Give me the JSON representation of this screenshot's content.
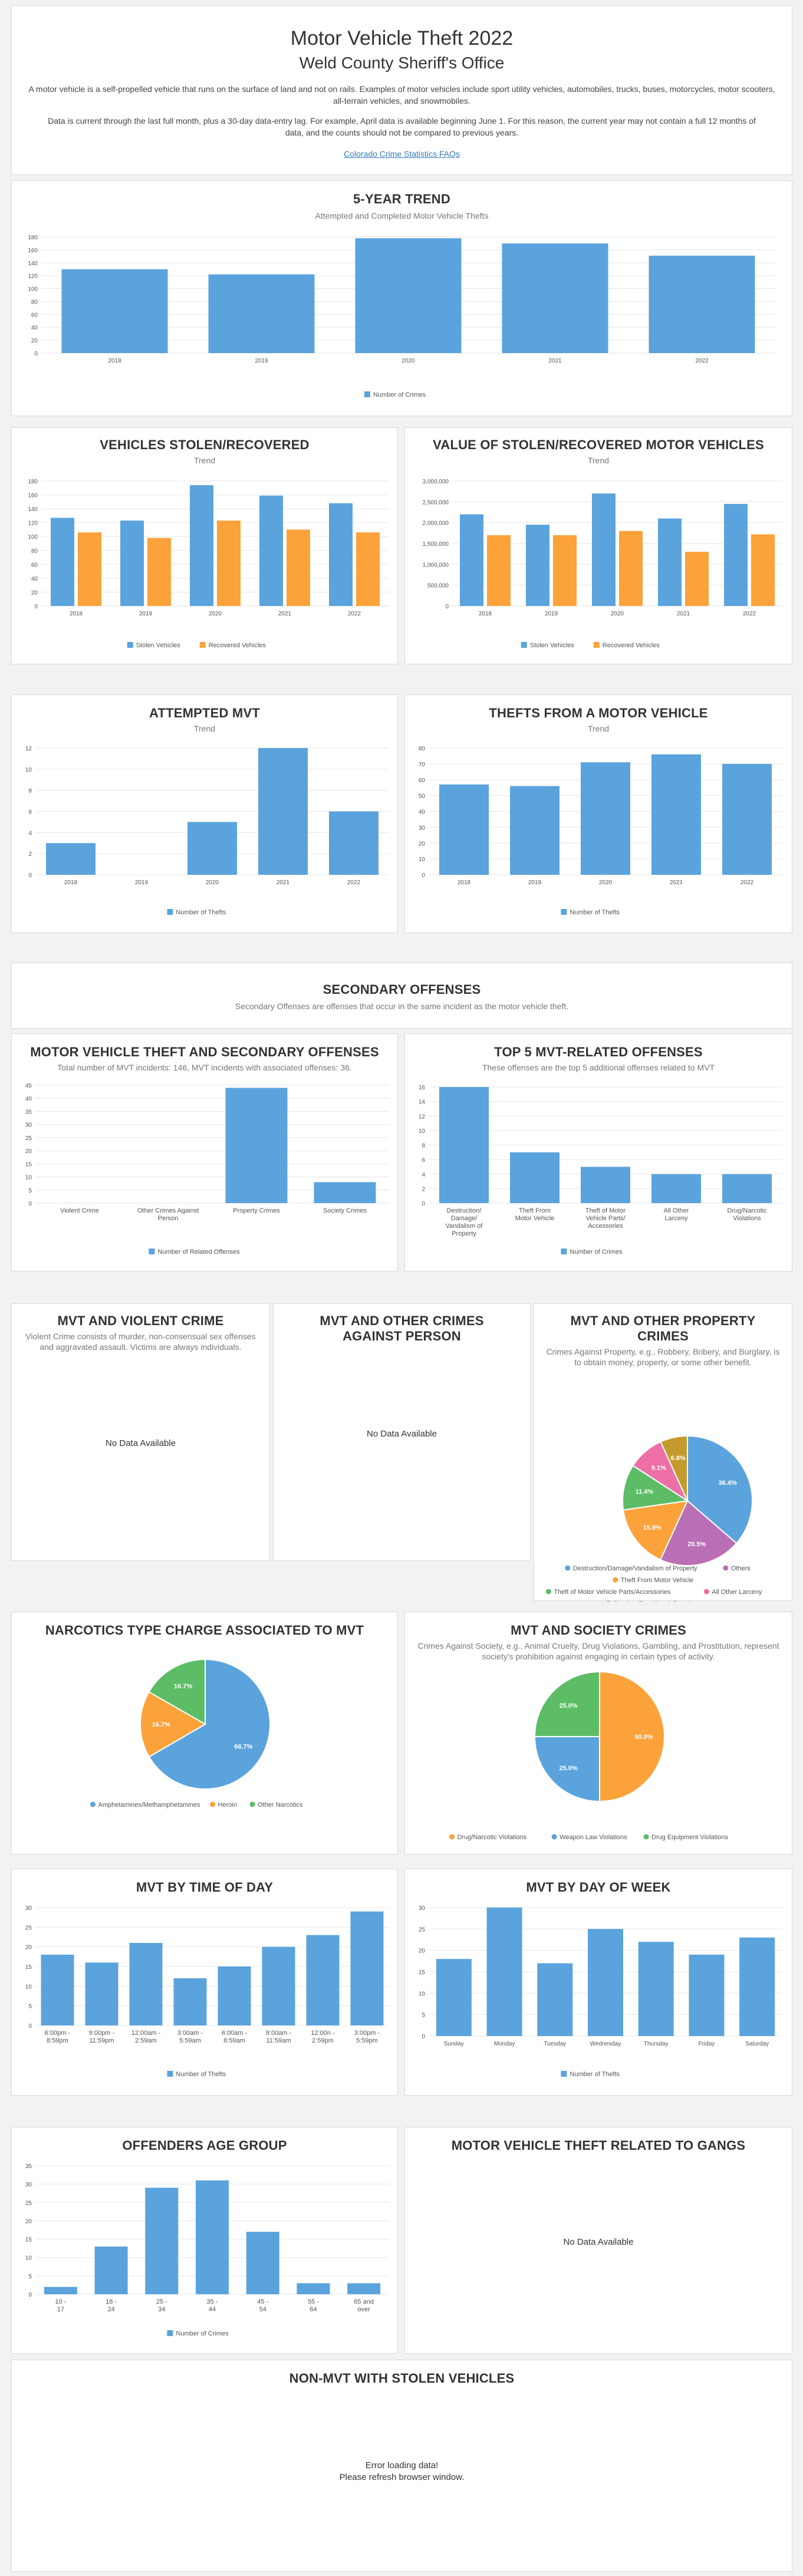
{
  "header": {
    "title": "Motor Vehicle Theft 2022",
    "subtitle": "Weld County Sheriff's Office",
    "desc1": "A motor vehicle is a self-propelled vehicle that runs on the surface of land and not on rails. Examples of motor vehicles include sport utility vehicles, automobiles, trucks, buses, motorcycles, motor scooters, all-terrain vehicles, and snowmobiles.",
    "desc2": "Data is current through the last full month, plus a 30-day data-entry lag. For example, April data is available beginning June 1. For this reason, the current year may not contain a full 12 months of data, and the counts should not be compared to previous years.",
    "faq_link": "Colorado Crime Statistics FAQs"
  },
  "colors": {
    "blue": "#5ba3dc",
    "orange": "#fba23a",
    "purple": "#b96fb5",
    "green": "#5cbd66",
    "pink": "#ee6fa6",
    "gold": "#c49a2c"
  },
  "panels": {
    "trend": {
      "title": "5-Year Trend",
      "sub": "Attempted and Completed Motor Vehicle Thefts"
    },
    "stolen": {
      "title": "Vehicles Stolen/Recovered",
      "sub": "Trend"
    },
    "value": {
      "title": "Value of Stolen/Recovered Motor Vehicles",
      "sub": "Trend"
    },
    "attempted": {
      "title": "Attempted MVT",
      "sub": "Trend"
    },
    "thefts_from": {
      "title": "Thefts From a Motor Vehicle",
      "sub": "Trend"
    },
    "secondary": {
      "title": "Secondary Offenses",
      "sub": "Secondary Offenses are offenses that occur in the same incident as the motor vehicle theft."
    },
    "mvt_secondary": {
      "title": "Motor Vehicle Theft and Secondary Offenses",
      "sub": "Total number of MVT incidents: 146, MVT incidents with associated offenses: 36."
    },
    "top5": {
      "title": "Top 5 MVT-Related Offenses",
      "sub": "These offenses are the top 5 additional offenses related to MVT"
    },
    "violent": {
      "title": "MVT and Violent Crime",
      "sub": "Violent Crime consists of murder, non-consensual sex offenses and aggravated assault. Victims are always individuals.",
      "nodata": "No Data Available"
    },
    "person": {
      "title": "MVT and Other Crimes Against Person",
      "nodata": "No Data Available"
    },
    "property": {
      "title": "MVT and Other Property Crimes",
      "sub": "Crimes Against Property, e.g., Robbery, Bribery, and Burglary, is to obtain money, property, or some other benefit."
    },
    "narcotics": {
      "title": "Narcotics Type Charge Associated to MVT"
    },
    "society": {
      "title": "MVT and Society Crimes",
      "sub": "Crimes Against Society, e.g., Animal Cruelty, Drug Violations, Gambling, and Prostitution, represent society's prohibition against engaging in certain types of activity."
    },
    "time": {
      "title": "MVT by Time of Day"
    },
    "dow": {
      "title": "MVT by Day of Week"
    },
    "age": {
      "title": "Offenders Age Group"
    },
    "gangs": {
      "title": "Motor Vehicle Theft Related to Gangs",
      "nodata": "No Data Available"
    },
    "nonmvt": {
      "title": "Non-MVT with Stolen Vehicles",
      "err1": "Error loading data!",
      "err2": "Please refresh browser window."
    }
  },
  "chart_data": [
    {
      "id": "trend",
      "type": "bar",
      "categories": [
        "2018",
        "2019",
        "2020",
        "2021",
        "2022"
      ],
      "series": [
        {
          "name": "Number of Crimes",
          "values": [
            130,
            122,
            178,
            170,
            151
          ]
        }
      ],
      "ylim": [
        0,
        180
      ],
      "yticks": [
        0,
        20,
        40,
        60,
        80,
        100,
        120,
        140,
        160,
        180
      ]
    },
    {
      "id": "stolen",
      "type": "bar",
      "categories": [
        "2018",
        "2019",
        "2020",
        "2021",
        "2022"
      ],
      "series": [
        {
          "name": "Stolen Vehicles",
          "values": [
            127,
            123,
            174,
            159,
            148
          ]
        },
        {
          "name": "Recovered Vehicles",
          "values": [
            106,
            98,
            123,
            110,
            106
          ]
        }
      ],
      "ylim": [
        0,
        180
      ],
      "yticks": [
        0,
        20,
        40,
        60,
        80,
        100,
        120,
        140,
        160,
        180
      ]
    },
    {
      "id": "value",
      "type": "bar",
      "categories": [
        "2018",
        "2019",
        "2020",
        "2021",
        "2022"
      ],
      "series": [
        {
          "name": "Stolen Vehicles",
          "values": [
            2200000,
            1950000,
            2700000,
            2100000,
            2450000
          ]
        },
        {
          "name": "Recovered Vehicles",
          "values": [
            1700000,
            1700000,
            1800000,
            1300000,
            1720000
          ]
        }
      ],
      "ylim": [
        0,
        3000000
      ],
      "yticks": [
        0,
        500000,
        1000000,
        1500000,
        2000000,
        2500000,
        3000000
      ],
      "yticklabels": [
        "0",
        "500,000",
        "1,000,000",
        "1,500,000",
        "2,000,000",
        "2,500,000",
        "3,000,000"
      ]
    },
    {
      "id": "attempted",
      "type": "bar",
      "categories": [
        "2018",
        "2019",
        "2020",
        "2021",
        "2022"
      ],
      "series": [
        {
          "name": "Number of Thefts",
          "values": [
            3,
            0,
            5,
            12,
            6
          ]
        }
      ],
      "ylim": [
        0,
        12
      ],
      "yticks": [
        0,
        2,
        4,
        6,
        8,
        10,
        12
      ]
    },
    {
      "id": "thefts_from",
      "type": "bar",
      "categories": [
        "2018",
        "2019",
        "2020",
        "2021",
        "2022"
      ],
      "series": [
        {
          "name": "Number of Thefts",
          "values": [
            57,
            56,
            71,
            76,
            70
          ]
        }
      ],
      "ylim": [
        0,
        80
      ],
      "yticks": [
        0,
        10,
        20,
        30,
        40,
        50,
        60,
        70,
        80
      ]
    },
    {
      "id": "mvt_secondary",
      "type": "bar",
      "categories": [
        "Violent Crime",
        "Other Crimes Against Person",
        "Property Crimes",
        "Society Crimes"
      ],
      "series": [
        {
          "name": "Number of Related Offenses",
          "values": [
            0,
            0,
            44,
            8
          ]
        }
      ],
      "ylim": [
        0,
        45
      ],
      "yticks": [
        0,
        5,
        10,
        15,
        20,
        25,
        30,
        35,
        40,
        45
      ]
    },
    {
      "id": "top5",
      "type": "bar",
      "categories": [
        "Destruction/ Damage/ Vandalism of Property",
        "Theft From Motor Vehicle",
        "Theft of Motor Vehicle Parts/ Accessories",
        "All Other Larceny",
        "Drug/Narcotic Violations"
      ],
      "series": [
        {
          "name": "Number of Crimes",
          "values": [
            16,
            7,
            5,
            4,
            4
          ]
        }
      ],
      "ylim": [
        0,
        16
      ],
      "yticks": [
        0,
        2,
        4,
        6,
        8,
        10,
        12,
        14,
        16
      ]
    },
    {
      "id": "property",
      "type": "pie",
      "slices": [
        {
          "label": "Destruction/Damage/Vandalism of Property",
          "value": 36.4,
          "text": "36.4%"
        },
        {
          "label": "Others",
          "value": 20.5,
          "text": "20.5%"
        },
        {
          "label": "Theft From Motor Vehicle",
          "value": 15.9,
          "text": "15.9%"
        },
        {
          "label": "Theft of Motor Vehicle Parts/Accessories",
          "value": 11.4,
          "text": "11.4%"
        },
        {
          "label": "All Other Larceny",
          "value": 9.1,
          "text": "9.1%"
        },
        {
          "label": "Burglary/Breaking & Entering",
          "value": 6.8,
          "text": "6.8%"
        }
      ]
    },
    {
      "id": "narcotics",
      "type": "pie",
      "slices": [
        {
          "label": "Amphetamines/Methamphetamines",
          "value": 66.7,
          "text": "66.7%"
        },
        {
          "label": "Heroin",
          "value": 16.7,
          "text": "16.7%"
        },
        {
          "label": "Other Narcotics",
          "value": 16.7,
          "text": "16.7%"
        }
      ]
    },
    {
      "id": "society",
      "type": "pie",
      "slices": [
        {
          "label": "Drug/Narcotic Violations",
          "value": 50.0,
          "text": "50.0%"
        },
        {
          "label": "Weapon Law Violations",
          "value": 25.0,
          "text": "25.0%"
        },
        {
          "label": "Drug Equipment Violations",
          "value": 25.0,
          "text": "25.0%"
        }
      ]
    },
    {
      "id": "time",
      "type": "bar",
      "categories": [
        "6:00pm - 8:59pm",
        "9:00pm - 11:59pm",
        "12:00am - 2:59am",
        "3:00am - 5:59am",
        "6:00am - 8:59am",
        "9:00am - 11:59am",
        "12:00n - 2:59pm",
        "3:00pm - 5:59pm"
      ],
      "series": [
        {
          "name": "Number of Thefts",
          "values": [
            18,
            16,
            21,
            12,
            15,
            20,
            23,
            29
          ]
        }
      ],
      "ylim": [
        0,
        30
      ],
      "yticks": [
        0,
        5,
        10,
        15,
        20,
        25,
        30
      ]
    },
    {
      "id": "dow",
      "type": "bar",
      "categories": [
        "Sunday",
        "Monday",
        "Tuesday",
        "Wednesday",
        "Thursday",
        "Friday",
        "Saturday"
      ],
      "series": [
        {
          "name": "Number of Thefts",
          "values": [
            18,
            30,
            17,
            25,
            22,
            19,
            23
          ]
        }
      ],
      "ylim": [
        0,
        30
      ],
      "yticks": [
        0,
        5,
        10,
        15,
        20,
        25,
        30
      ]
    },
    {
      "id": "age",
      "type": "bar",
      "categories": [
        "10 - 17",
        "18 - 24",
        "25 - 34",
        "35 - 44",
        "45 - 54",
        "55 - 64",
        "65 and over"
      ],
      "series": [
        {
          "name": "Number of Crimes",
          "values": [
            2,
            13,
            29,
            31,
            17,
            3,
            3
          ]
        }
      ],
      "ylim": [
        0,
        35
      ],
      "yticks": [
        0,
        5,
        10,
        15,
        20,
        25,
        30,
        35
      ]
    }
  ]
}
